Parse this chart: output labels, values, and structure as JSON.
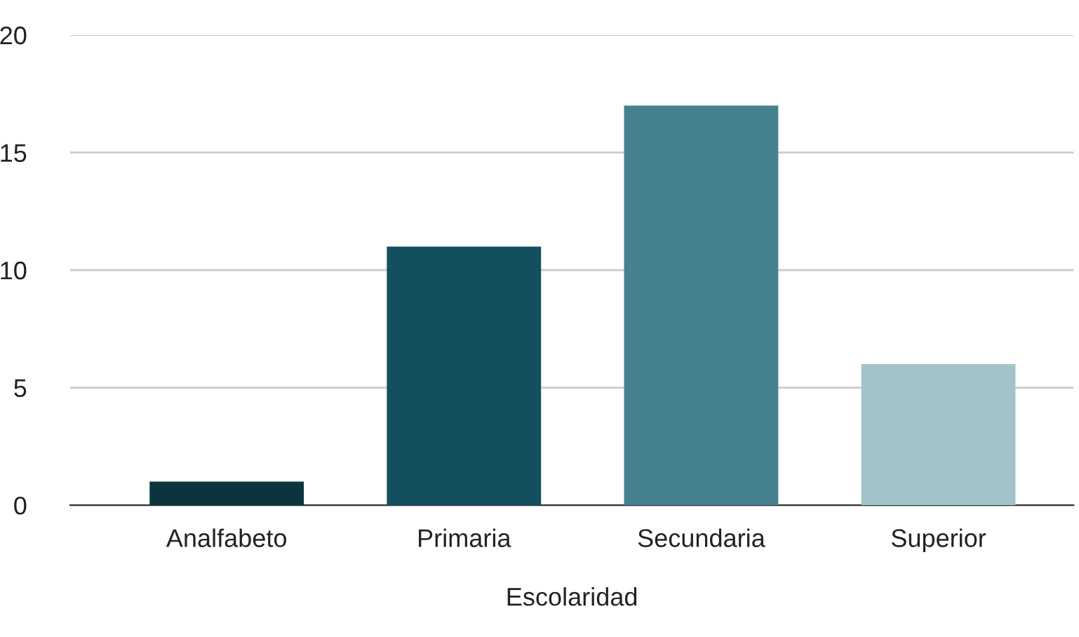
{
  "chart_data": {
    "type": "bar",
    "xlabel": "Escolaridad",
    "categories": [
      "Analfabeto",
      "Primaria",
      "Secundaria",
      "Superior"
    ],
    "values": [
      1,
      11,
      17,
      6
    ],
    "colors": [
      "#0c343d",
      "#134f5c",
      "#45818e",
      "#a2c4c9"
    ],
    "ylim": [
      0,
      20
    ],
    "yticks": [
      0,
      5,
      10,
      15,
      20
    ],
    "grid": "y",
    "legend": false
  }
}
